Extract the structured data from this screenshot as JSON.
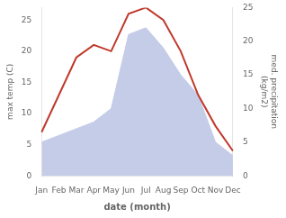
{
  "chart_data": {
    "type": "line",
    "xlabel": "date (month)",
    "ylabel": "max temp (C)",
    "y2label": "med. precipitation\n(kg/m2)",
    "categories": [
      "Jan",
      "Feb",
      "Mar",
      "Apr",
      "May",
      "Jun",
      "Jul",
      "Aug",
      "Sep",
      "Oct",
      "Nov",
      "Dec"
    ],
    "series": [
      {
        "type": "area",
        "color": "#c5cce8",
        "axis": "y2",
        "values": [
          5,
          6,
          7,
          8,
          10,
          21,
          22,
          19,
          15,
          12,
          5,
          3
        ]
      },
      {
        "type": "line",
        "color": "#c0392b",
        "values": [
          7,
          13,
          19,
          21,
          20,
          26,
          27,
          25,
          20,
          13,
          8,
          4
        ]
      }
    ],
    "ylim": [
      0,
      27
    ],
    "yticks": [
      0,
      5,
      10,
      15,
      20,
      25
    ],
    "y2lim": [
      0,
      25
    ],
    "y2ticks": [
      0,
      5,
      10,
      15,
      20,
      25
    ],
    "grid": false
  }
}
